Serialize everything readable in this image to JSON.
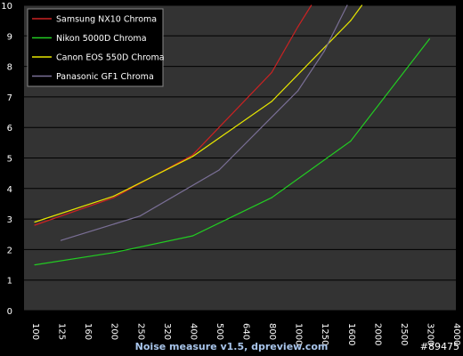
{
  "chart_data": {
    "type": "line",
    "categories": [
      "100",
      "125",
      "160",
      "200",
      "250",
      "320",
      "400",
      "500",
      "640",
      "800",
      "1000",
      "1250",
      "1600",
      "2000",
      "2500",
      "3200",
      "4000"
    ],
    "ylim": [
      0,
      10
    ],
    "yticks": [
      0,
      1,
      2,
      3,
      4,
      5,
      6,
      7,
      8,
      9,
      10
    ],
    "grid": true,
    "legend_position": "top-left",
    "title": "",
    "xlabel": "",
    "ylabel": "",
    "series": [
      {
        "name": "Samsung NX10 Chroma",
        "color": "#cc2222",
        "x": [
          100,
          200,
          400,
          800,
          1000,
          1120
        ],
        "values": [
          2.8,
          3.7,
          5.1,
          7.8,
          9.3,
          10.0
        ]
      },
      {
        "name": "Nikon 5000D  Chroma",
        "color": "#22cc22",
        "x": [
          100,
          200,
          400,
          800,
          1600,
          3200
        ],
        "values": [
          1.5,
          1.9,
          2.45,
          3.7,
          5.55,
          8.9
        ]
      },
      {
        "name": "Canon EOS 550D  Chroma",
        "color": "#e6e600",
        "x": [
          100,
          200,
          400,
          800,
          1600,
          1760
        ],
        "values": [
          2.9,
          3.75,
          5.05,
          6.85,
          9.5,
          10.0
        ]
      },
      {
        "name": "Panasonic GF1 Chroma",
        "color": "#7a6f96",
        "x": [
          125,
          250,
          500,
          1000,
          1250,
          1550
        ],
        "values": [
          2.3,
          3.1,
          4.6,
          7.2,
          8.5,
          10.0
        ]
      }
    ]
  },
  "footer": {
    "text": "Noise measure v1.5, dpreview.com",
    "id": "#89475"
  }
}
